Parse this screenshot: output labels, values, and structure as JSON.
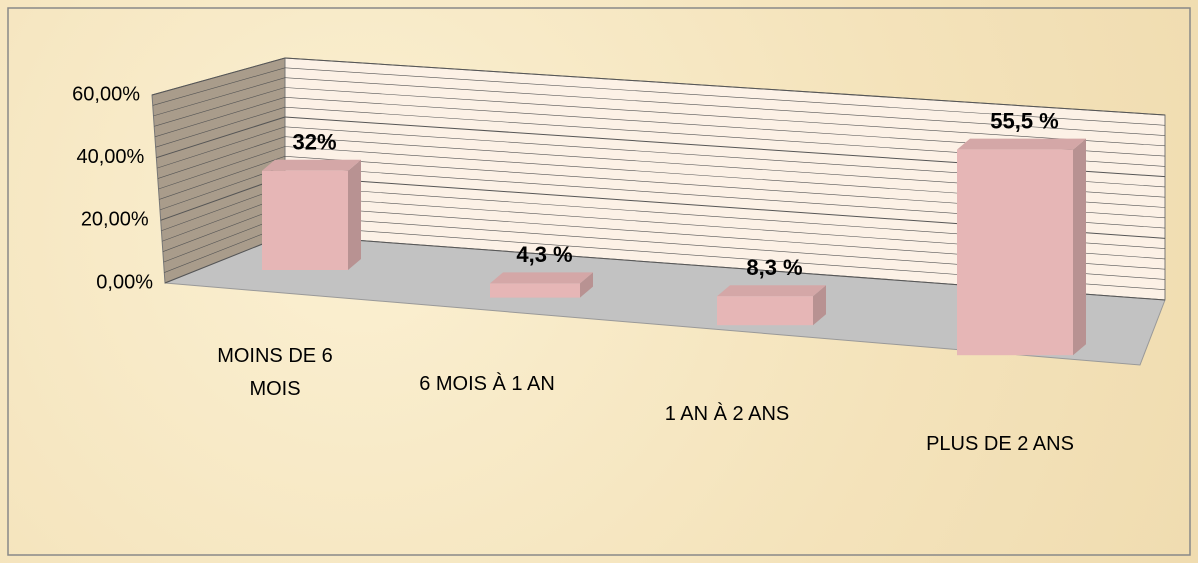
{
  "chart_data": {
    "type": "bar3d",
    "categories": [
      "MOINS DE 6 MOIS",
      "6 MOIS À 1 AN",
      "1 AN À 2 ANS",
      "PLUS DE 2 ANS"
    ],
    "values": [
      32,
      4.3,
      8.3,
      55.5
    ],
    "value_labels": [
      "32%",
      "4,3 %",
      "8,3 %",
      "55,5 %"
    ],
    "color": "#e6b6b6",
    "ylim": [
      0,
      60
    ],
    "yticks": [
      {
        "value": 0,
        "label": "0,00%"
      },
      {
        "value": 20,
        "label": "20,00%"
      },
      {
        "value": 40,
        "label": "40,00%"
      },
      {
        "value": 60,
        "label": "60,00%"
      }
    ],
    "grid": true
  }
}
